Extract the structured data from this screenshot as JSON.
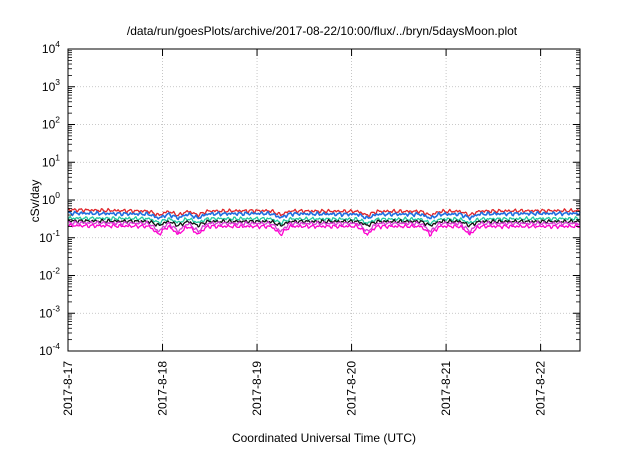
{
  "chart_data": {
    "type": "line",
    "title": "/data/run/goesPlots/archive/2017-08-22/10:00/flux/../bryn/5daysMoon.plot",
    "xlabel": "Coordinated Universal Time (UTC)",
    "ylabel": "cSv/day",
    "yscale": "log",
    "ylim": [
      0.0001,
      10000
    ],
    "xlim": [
      "2017-08-17",
      "2017-08-22 10:00"
    ],
    "grid": true,
    "legend": "none",
    "y_ticks": [
      {
        "base": "10",
        "exp": "4"
      },
      {
        "base": "10",
        "exp": "3"
      },
      {
        "base": "10",
        "exp": "2"
      },
      {
        "base": "10",
        "exp": "1"
      },
      {
        "base": "10",
        "exp": "0"
      },
      {
        "base": "10",
        "exp": "-1"
      },
      {
        "base": "10",
        "exp": "-2"
      },
      {
        "base": "10",
        "exp": "-3"
      },
      {
        "base": "10",
        "exp": "-4"
      }
    ],
    "x_ticks": [
      "2017-8-17",
      "2017-8-18",
      "2017-8-19",
      "2017-8-20",
      "2017-8-21",
      "2017-8-22"
    ],
    "series_samples": {
      "t": [
        "2017-08-17",
        "2017-08-18",
        "2017-08-19",
        "2017-08-20",
        "2017-08-21",
        "2017-08-22"
      ],
      "series": [
        {
          "color": "#e0262b",
          "values": [
            0.55,
            0.5,
            0.52,
            0.5,
            0.5,
            0.52
          ]
        },
        {
          "color": "#1f6fe0",
          "values": [
            0.45,
            0.42,
            0.44,
            0.42,
            0.42,
            0.44
          ]
        },
        {
          "color": "#20c8a0",
          "values": [
            0.33,
            0.32,
            0.32,
            0.31,
            0.31,
            0.32
          ]
        },
        {
          "color": "#111111",
          "values": [
            0.28,
            0.27,
            0.27,
            0.27,
            0.27,
            0.27
          ]
        },
        {
          "color": "#d43cd4",
          "values": [
            0.25,
            0.24,
            0.24,
            0.24,
            0.24,
            0.24
          ]
        },
        {
          "color": "#ff00d0",
          "values": [
            0.21,
            0.2,
            0.2,
            0.2,
            0.2,
            0.2
          ]
        }
      ],
      "dips": [
        "2017-08-17 23:00",
        "2017-08-18 04:00",
        "2017-08-18 09:00",
        "2017-08-19 06:00",
        "2017-08-20 04:00",
        "2017-08-20 20:00",
        "2017-08-21 06:00"
      ]
    }
  }
}
